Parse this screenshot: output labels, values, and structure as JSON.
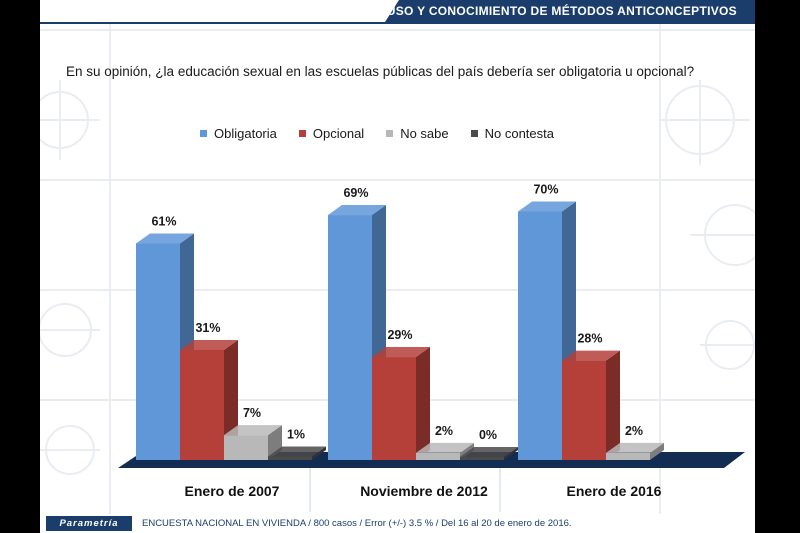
{
  "header": {
    "title": "USO  Y CONOCIMIENTO DE MÉTODOS ANTICONCEPTIVOS"
  },
  "question": "En su opinión, ¿la educación sexual en las escuelas públicas del país debería ser obligatoria u opcional?",
  "colors": {
    "header_band": "#1b3d6c",
    "Obligatoria": "#5f97d9",
    "Opcional": "#b5403a",
    "No sabe": "#b8b8b8",
    "No contesta": "#4a4a4a"
  },
  "chart_data": {
    "type": "bar",
    "categories": [
      "Enero de 2007",
      "Noviembre de 2012",
      "Enero de 2016"
    ],
    "series": [
      {
        "name": "Obligatoria",
        "values": [
          61,
          69,
          70
        ],
        "labels": [
          "61%",
          "69%",
          "70%"
        ]
      },
      {
        "name": "Opcional",
        "values": [
          31,
          29,
          28
        ],
        "labels": [
          "31%",
          "29%",
          "28%"
        ]
      },
      {
        "name": "No sabe",
        "values": [
          7,
          2,
          2
        ],
        "labels": [
          "7%",
          "2%",
          "2%"
        ]
      },
      {
        "name": "No contesta",
        "values": [
          1,
          0,
          null
        ],
        "labels": [
          "1%",
          "0%",
          ""
        ]
      }
    ],
    "ylim": [
      0,
      80
    ],
    "grid": false,
    "legend_position": "top",
    "style": "3d"
  },
  "footer": {
    "logo_text": "Parametría",
    "note": "ENCUESTA NACIONAL EN VIVIENDA / 800 casos / Error (+/-) 3.5 % / Del 16 al 20 de enero de 2016."
  }
}
